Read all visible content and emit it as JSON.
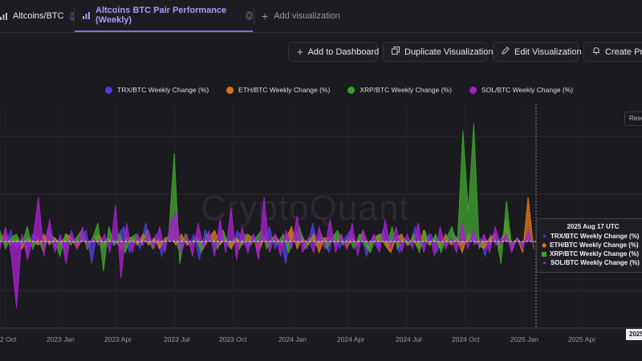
{
  "tabs": [
    {
      "label": "Altcoins/BTC"
    },
    {
      "label": "Altcoins BTC Pair Performance (Weekly)"
    }
  ],
  "add_visualization_label": "Add visualization",
  "toolbar": {
    "add_dashboard": "Add to Dashboard",
    "duplicate": "Duplicate Visualization",
    "edit": "Edit Visualization",
    "create_preset": "Create Pres"
  },
  "reset_label": "Rese",
  "watermark": "CryptoQuant",
  "colors": {
    "accent": "#7f6ef5",
    "trx": "#4b3fd6",
    "eth": "#d9741c",
    "xrp": "#3fa02b",
    "sol": "#a321c8"
  },
  "tooltip": {
    "title": "2025 Aug 17 UTC",
    "rows": [
      {
        "label": "TRX/BTC Weekly Change (%)",
        "value": ":"
      },
      {
        "label": "ETH/BTC Weekly Change (%)",
        "value": "("
      },
      {
        "label": "XRP/BTC Weekly Change (%)",
        "value": ":"
      },
      {
        "label": "SOL/BTC Weekly Change (%)",
        "value": "("
      }
    ]
  },
  "x_badge": "2025",
  "chart_data": {
    "type": "area",
    "title": "",
    "legend": [
      "TRX/BTC Weekly Change (%)",
      "ETH/BTC Weekly Change (%)",
      "XRP/BTC Weekly Change (%)",
      "SOL/BTC Weekly Change (%)"
    ],
    "legend_position": "top",
    "x_tick_labels": [
      "2 Oct",
      "2023 Jan",
      "2023 Apr",
      "2023 Jul",
      "2023 Oct",
      "2024 Jan",
      "2024 Apr",
      "2024 Jul",
      "2024 Oct",
      "2025 Jan",
      "2025 Apr"
    ],
    "grid": true,
    "baseline": 0,
    "series": [
      {
        "name": "TRX/BTC Weekly Change (%)",
        "values": [
          2,
          -1,
          3,
          -2,
          1,
          -3,
          2,
          1,
          -1,
          4,
          -2,
          1,
          -3,
          2,
          -1,
          1,
          3,
          -6,
          2,
          -2,
          1,
          -1,
          2,
          4,
          -3,
          1,
          -2,
          5,
          -1,
          2,
          -4,
          1,
          3,
          -2,
          1,
          -1,
          2,
          -5,
          3,
          1,
          -2,
          4,
          -1,
          -2,
          3,
          1,
          -3,
          2,
          -1,
          1,
          4,
          -2,
          1,
          -6,
          3,
          -1,
          2,
          -2,
          5,
          -1,
          1,
          -3,
          2,
          -2,
          1,
          3,
          -1,
          2,
          -4,
          1,
          -2,
          3,
          -1,
          2,
          -3,
          1,
          -1,
          4,
          -2,
          1,
          2,
          -3,
          1,
          -1,
          2,
          1,
          -2,
          3,
          -1,
          1,
          -4,
          2,
          -1,
          1,
          3,
          -2,
          1,
          -1,
          2,
          -1
        ]
      },
      {
        "name": "ETH/BTC Weekly Change (%)",
        "values": [
          1,
          2,
          -1,
          1,
          -2,
          1,
          0,
          -1,
          2,
          -1,
          1,
          -1,
          2,
          1,
          -2,
          1,
          -1,
          1,
          2,
          -1,
          1,
          0,
          -2,
          1,
          1,
          -1,
          2,
          -1,
          1,
          -2,
          1,
          1,
          -1,
          2,
          -1,
          0,
          1,
          -2,
          1,
          3,
          -1,
          1,
          -2,
          1,
          -1,
          2,
          1,
          -3,
          1,
          -1,
          2,
          -1,
          1,
          4,
          -2,
          1,
          -1,
          2,
          -3,
          1,
          1,
          -1,
          2,
          -2,
          1,
          -1,
          3,
          -2,
          1,
          2,
          -1,
          -3,
          1,
          2,
          -1,
          1,
          -2,
          3,
          -1,
          1,
          -2,
          2,
          -1,
          1,
          -3,
          2,
          1,
          -1,
          -2,
          1,
          2,
          -2,
          6,
          -1,
          1,
          -3,
          12,
          -2
        ]
      },
      {
        "name": "XRP/BTC Weekly Change (%)",
        "values": [
          3,
          -2,
          1,
          2,
          -1,
          4,
          -2,
          1,
          -3,
          2,
          1,
          -4,
          2,
          -1,
          1,
          3,
          -2,
          1,
          5,
          -8,
          4,
          -1,
          2,
          -3,
          1,
          2,
          -1,
          3,
          -2,
          1,
          -1,
          2,
          24,
          -6,
          2,
          -1,
          1,
          -3,
          2,
          1,
          -2,
          3,
          -1,
          1,
          -2,
          2,
          -1,
          1,
          3,
          -2,
          1,
          -1,
          2,
          -3,
          1,
          4,
          -2,
          1,
          -1,
          2,
          -2,
          1,
          3,
          -1,
          1,
          -2,
          2,
          -1,
          -3,
          1,
          2,
          -1,
          4,
          -2,
          1,
          -1,
          2,
          -3,
          3,
          -1,
          2,
          -3,
          1,
          4,
          -1,
          30,
          8,
          32,
          -2,
          1,
          -1,
          2,
          -6,
          11,
          -2,
          1,
          -1,
          2,
          -1
        ]
      },
      {
        "name": "SOL/BTC Weekly Change (%)",
        "values": [
          -2,
          4,
          -3,
          -18,
          2,
          -5,
          1,
          12,
          -4,
          6,
          -3,
          2,
          -6,
          3,
          -2,
          4,
          -2,
          1,
          -1,
          2,
          -3,
          10,
          -10,
          5,
          -3,
          2,
          -1,
          3,
          -2,
          4,
          -3,
          5,
          8,
          -3,
          2,
          -4,
          5,
          -2,
          3,
          -4,
          6,
          -3,
          9,
          -5,
          4,
          -3,
          2,
          -5,
          12,
          -3,
          2,
          -4,
          3,
          -2,
          7,
          -3,
          1,
          -3,
          4,
          -2,
          6,
          -3,
          2,
          -2,
          5,
          -4,
          3,
          -1,
          2,
          -3,
          6,
          -2,
          4,
          -3,
          2,
          -2,
          5,
          -3,
          2,
          -4,
          4,
          -2,
          1,
          -3,
          5,
          -2,
          3,
          -1,
          2,
          -3,
          4,
          -1,
          2,
          -3,
          1,
          -2,
          3,
          -1
        ]
      }
    ]
  }
}
